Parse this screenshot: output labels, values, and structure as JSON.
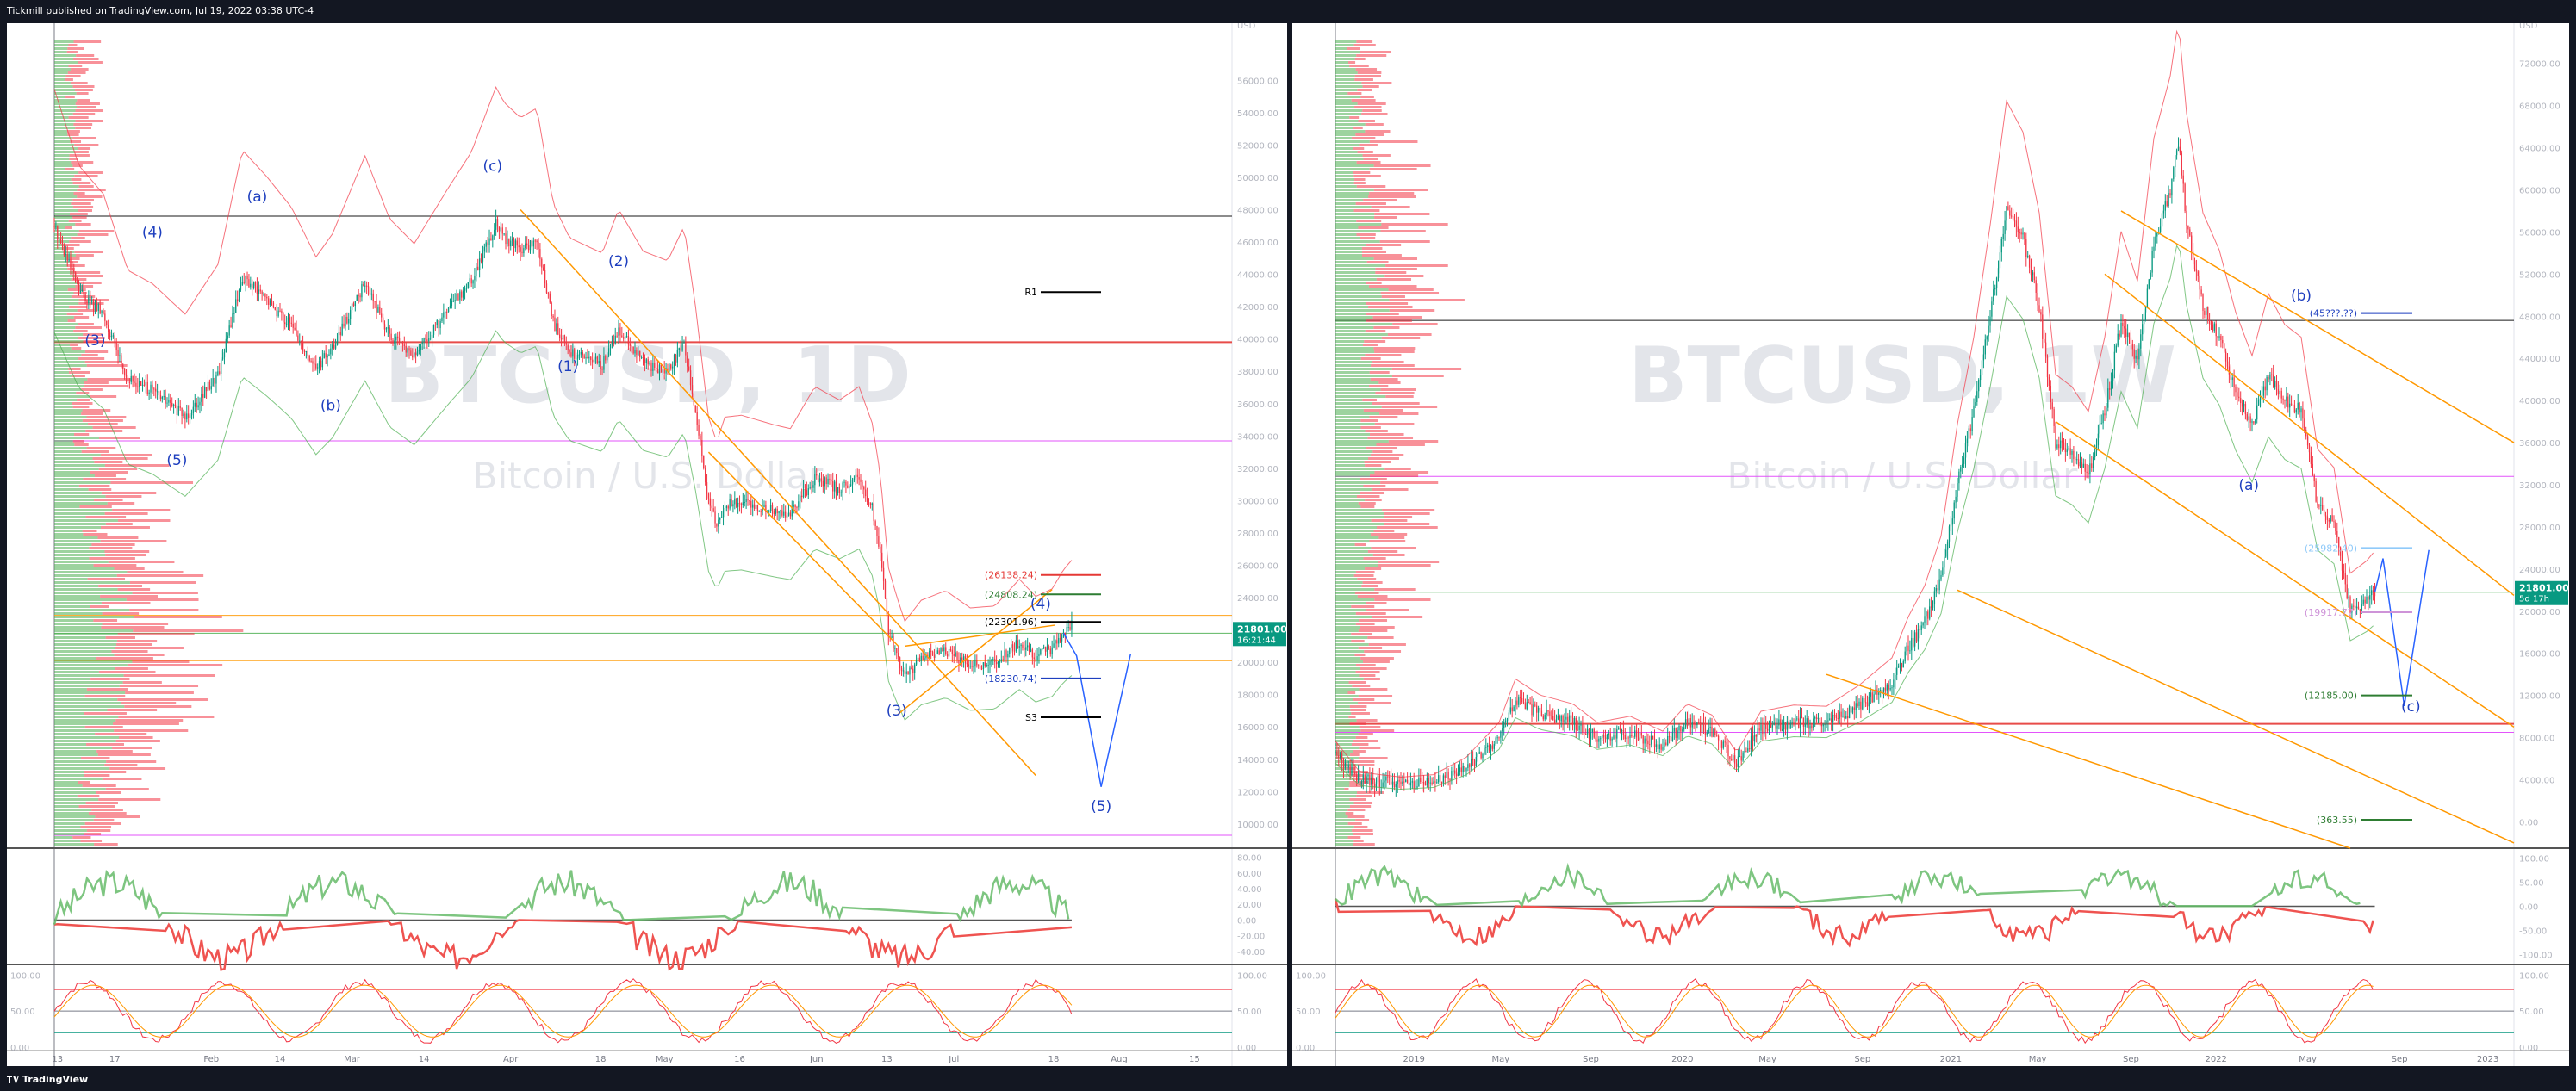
{
  "header": {
    "published_text": "Tickmill published on TradingView.com, Jul 19, 2022 03:38 UTC-4"
  },
  "footer": {
    "brand": "TradingView"
  },
  "left_chart": {
    "watermark_symbol": "BTCUSD, 1D",
    "watermark_name": "Bitcoin / U.S. Dollar"
  },
  "right_chart": {
    "watermark_symbol": "BTCUSD, 1W",
    "watermark_name": "Bitcoin / U.S. Dollar"
  },
  "chart_data": [
    {
      "type": "line",
      "title": "BTCUSD, 1D",
      "subtitle": "Bitcoin / U.S. Dollar",
      "currency": "USD",
      "y_ticks": [
        "10000.00",
        "12000.00",
        "14000.00",
        "16000.00",
        "18000.00",
        "20000.00",
        "22000.00",
        "24000.00",
        "26000.00",
        "28000.00",
        "30000.00",
        "32000.00",
        "34000.00",
        "36000.00",
        "38000.00",
        "40000.00",
        "42000.00",
        "44000.00",
        "46000.00",
        "48000.00",
        "50000.00",
        "52000.00",
        "54000.00",
        "56000.00"
      ],
      "ylim": [
        8500,
        59000
      ],
      "x_ticks": [
        "13",
        "17",
        "Feb",
        "14",
        "Mar",
        "14",
        "Apr",
        "18",
        "May",
        "16",
        "Jun",
        "13",
        "Jul",
        "18",
        "Aug",
        "15"
      ],
      "x_tick_positions": [
        2,
        37,
        96,
        138,
        182,
        226,
        279,
        334,
        373,
        419,
        466,
        509,
        550,
        611,
        651,
        697
      ],
      "price_label": "21801.00",
      "price_sublabel": "16:21:44",
      "price_key_path": [
        [
          0,
          47000
        ],
        [
          15,
          43000
        ],
        [
          30,
          41500
        ],
        [
          45,
          37500
        ],
        [
          60,
          36800
        ],
        [
          80,
          35200
        ],
        [
          100,
          37800
        ],
        [
          115,
          43800
        ],
        [
          130,
          42400
        ],
        [
          145,
          40800
        ],
        [
          160,
          38200
        ],
        [
          170,
          39400
        ],
        [
          190,
          43500
        ],
        [
          205,
          40200
        ],
        [
          220,
          38900
        ],
        [
          240,
          41700
        ],
        [
          255,
          43700
        ],
        [
          270,
          47100
        ],
        [
          275,
          46300
        ],
        [
          285,
          45500
        ],
        [
          295,
          46000
        ],
        [
          305,
          41000
        ],
        [
          315,
          39200
        ],
        [
          335,
          38400
        ],
        [
          345,
          40700
        ],
        [
          360,
          38500
        ],
        [
          375,
          38000
        ],
        [
          385,
          39800
        ],
        [
          392,
          35600
        ],
        [
          400,
          29800
        ],
        [
          405,
          28500
        ],
        [
          410,
          29800
        ],
        [
          420,
          29900
        ],
        [
          440,
          29400
        ],
        [
          450,
          29200
        ],
        [
          465,
          31400
        ],
        [
          480,
          30700
        ],
        [
          492,
          31400
        ],
        [
          500,
          29500
        ],
        [
          505,
          26800
        ],
        [
          510,
          21900
        ],
        [
          515,
          20400
        ],
        [
          520,
          19100
        ],
        [
          530,
          20200
        ],
        [
          545,
          20700
        ],
        [
          560,
          19800
        ],
        [
          575,
          19900
        ],
        [
          590,
          21300
        ],
        [
          600,
          20400
        ],
        [
          610,
          20800
        ],
        [
          617,
          21800
        ],
        [
          622,
          22300
        ]
      ],
      "projection": [
        [
          617,
          21800
        ],
        [
          625,
          20400
        ],
        [
          640,
          12300
        ],
        [
          658,
          20500
        ]
      ],
      "wave_labels": [
        {
          "text": "(a)",
          "x": 124,
          "y": 48500
        },
        {
          "text": "(4)",
          "x": 60,
          "y": 46300
        },
        {
          "text": "(3)",
          "x": 25,
          "y": 39600
        },
        {
          "text": "(b)",
          "x": 169,
          "y": 35600
        },
        {
          "text": "(5)",
          "x": 75,
          "y": 32200
        },
        {
          "text": "(c)",
          "x": 268,
          "y": 50400
        },
        {
          "text": "(2)",
          "x": 345,
          "y": 44500
        },
        {
          "text": "(1)",
          "x": 314,
          "y": 38000
        },
        {
          "text": "(3)",
          "x": 515,
          "y": 16700
        },
        {
          "text": "(4)",
          "x": 603,
          "y": 23300
        },
        {
          "text": "(5)",
          "x": 640,
          "y": 10800
        }
      ],
      "levels": [
        {
          "label": "R1",
          "value": 42900,
          "color": "#000000"
        },
        {
          "label": "(26138.24)",
          "value": 25400,
          "color": "#e53935"
        },
        {
          "label": "(24808.24)",
          "value": 24200,
          "color": "#2e7d32"
        },
        {
          "label": "(22301.96)",
          "value": 22500,
          "color": "#000000"
        },
        {
          "label": "(18230.74)",
          "value": 19000,
          "color": "#1e3fbf"
        },
        {
          "label": "S3",
          "value": 16600,
          "color": "#000000"
        }
      ],
      "horizontal_lines": [
        {
          "value": 47600,
          "color": "#000000"
        },
        {
          "value": 39800,
          "color": "#e53935"
        },
        {
          "value": 33700,
          "color": "#e040fb"
        },
        {
          "value": 22900,
          "color": "#ff9800"
        },
        {
          "value": 21800,
          "color": "#4caf50"
        },
        {
          "value": 20100,
          "color": "#ff9800"
        },
        {
          "value": 9300,
          "color": "#e040fb"
        }
      ],
      "oscillator_1": {
        "y_ticks": [
          "-40.00",
          "-20.00",
          "0.00",
          "20.00",
          "40.00",
          "60.00",
          "80.00"
        ],
        "ylim": [
          -50,
          85
        ]
      },
      "oscillator_2": {
        "y_ticks": [
          "100.00",
          "50.00",
          "0.00"
        ],
        "ylim": [
          0,
          110
        ]
      }
    },
    {
      "type": "line",
      "title": "BTCUSD, 1W",
      "subtitle": "Bitcoin / U.S. Dollar",
      "currency": "USD",
      "y_ticks": [
        "0.00",
        "4000.00",
        "8000.00",
        "12000.00",
        "16000.00",
        "20000.00",
        "24000.00",
        "28000.00",
        "32000.00",
        "36000.00",
        "40000.00",
        "44000.00",
        "48000.00",
        "52000.00",
        "56000.00",
        "60000.00",
        "64000.00",
        "68000.00",
        "72000.00"
      ],
      "ylim": [
        -2500,
        75000
      ],
      "x_ticks": [
        "2019",
        "May",
        "Sep",
        "2020",
        "May",
        "Sep",
        "2021",
        "May",
        "Sep",
        "2022",
        "May",
        "Sep",
        "2023"
      ],
      "x_tick_positions": [
        48,
        101,
        156,
        212,
        264,
        322,
        376,
        429,
        486,
        538,
        594,
        650,
        704
      ],
      "price_label": "21801.00",
      "price_sublabel": "5d 17h",
      "price_key_path": [
        [
          0,
          6500
        ],
        [
          15,
          4000
        ],
        [
          40,
          3600
        ],
        [
          60,
          3800
        ],
        [
          80,
          5200
        ],
        [
          100,
          8000
        ],
        [
          110,
          11500
        ],
        [
          125,
          10200
        ],
        [
          145,
          9500
        ],
        [
          160,
          8000
        ],
        [
          180,
          8500
        ],
        [
          200,
          7300
        ],
        [
          215,
          9500
        ],
        [
          230,
          8600
        ],
        [
          245,
          5600
        ],
        [
          260,
          8900
        ],
        [
          280,
          9400
        ],
        [
          300,
          9300
        ],
        [
          320,
          11000
        ],
        [
          340,
          13200
        ],
        [
          350,
          16500
        ],
        [
          360,
          19000
        ],
        [
          370,
          23000
        ],
        [
          380,
          32000
        ],
        [
          390,
          39000
        ],
        [
          400,
          48000
        ],
        [
          410,
          58000
        ],
        [
          420,
          55500
        ],
        [
          430,
          49000
        ],
        [
          440,
          36000
        ],
        [
          450,
          35000
        ],
        [
          460,
          33000
        ],
        [
          470,
          39000
        ],
        [
          480,
          47500
        ],
        [
          490,
          43500
        ],
        [
          500,
          55000
        ],
        [
          510,
          60000
        ],
        [
          515,
          64500
        ],
        [
          520,
          57000
        ],
        [
          530,
          49000
        ],
        [
          540,
          46000
        ],
        [
          550,
          41000
        ],
        [
          560,
          37500
        ],
        [
          570,
          42500
        ],
        [
          580,
          40000
        ],
        [
          590,
          39000
        ],
        [
          600,
          30000
        ],
        [
          610,
          28500
        ],
        [
          620,
          20000
        ],
        [
          630,
          21000
        ],
        [
          635,
          21800
        ]
      ],
      "projection": [
        [
          635,
          21800
        ],
        [
          640,
          25000
        ],
        [
          653,
          11000
        ],
        [
          668,
          25800
        ]
      ],
      "wave_labels": [
        {
          "text": "(b)",
          "x": 590,
          "y": 49500
        },
        {
          "text": "(a)",
          "x": 558,
          "y": 31500
        },
        {
          "text": "(c)",
          "x": 657,
          "y": 10500
        }
      ],
      "levels": [
        {
          "label": "(45???.??)",
          "value": 48300,
          "color": "#1e3fbf"
        },
        {
          "label": "(25982.40)",
          "value": 26000,
          "color": "#90caf9"
        },
        {
          "label": "(19917.77)",
          "value": 19900,
          "color": "#ce93d8"
        },
        {
          "label": "(12185.00)",
          "value": 12000,
          "color": "#2e7d32"
        },
        {
          "label": "(363.55)",
          "value": 200,
          "color": "#2e7d32"
        }
      ],
      "horizontal_lines": [
        {
          "value": 47600,
          "color": "#000000"
        },
        {
          "value": 32800,
          "color": "#e040fb"
        },
        {
          "value": 21800,
          "color": "#4caf50"
        },
        {
          "value": 9300,
          "color": "#e53935"
        },
        {
          "value": 8500,
          "color": "#e040fb"
        }
      ],
      "oscillator_1": {
        "y_ticks": [
          "-100.00",
          "-50.00",
          "0.00",
          "50.00",
          "100.00"
        ],
        "ylim": [
          -110,
          110
        ]
      },
      "oscillator_2": {
        "y_ticks": [
          "100.00",
          "50.00",
          "0.00"
        ],
        "ylim": [
          0,
          110
        ]
      }
    }
  ]
}
